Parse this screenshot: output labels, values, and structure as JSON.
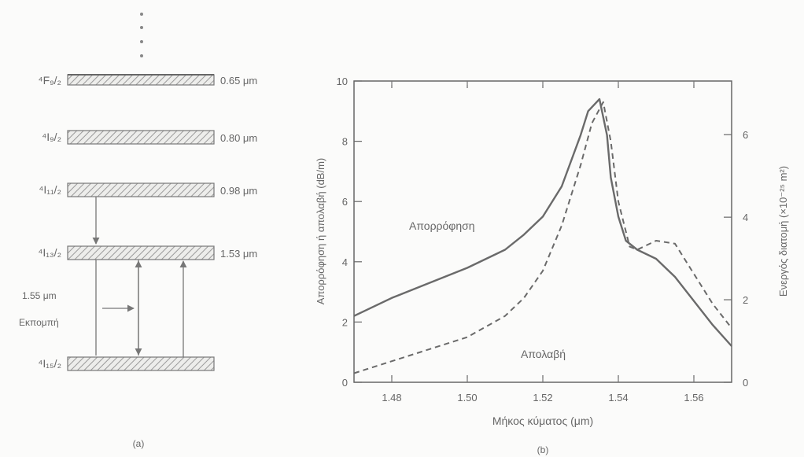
{
  "panel_a": {
    "levels": [
      {
        "label": "⁴F₉/₂",
        "wavelength": "0.65 μm"
      },
      {
        "label": "⁴I₉/₂",
        "wavelength": "0.80 μm"
      },
      {
        "label": "⁴I₁₁/₂",
        "wavelength": "0.98 μm"
      },
      {
        "label": "⁴I₁₃/₂",
        "wavelength": "1.53 μm"
      },
      {
        "label": "⁴I₁₅/₂",
        "wavelength": ""
      }
    ],
    "emission_label_line1": "1.55 μm",
    "emission_label_line2": "Εκπομπή",
    "caption": "(a)"
  },
  "panel_b": {
    "caption": "(b)"
  },
  "chart_data": {
    "type": "line",
    "xlabel": "Μήκος κύματος (μm)",
    "ylabel_left": "Απορρόφηση ή απολαβή (dB/m)",
    "ylabel_right": "Ενεργός διατομή (×10⁻²⁵ m²)",
    "xlim": [
      1.47,
      1.57
    ],
    "ylim_left": [
      0,
      10
    ],
    "ylim_right": [
      0,
      7.3
    ],
    "x_ticks": [
      "1.48",
      "1.50",
      "1.52",
      "1.54",
      "1.56"
    ],
    "y_ticks_left": [
      "0",
      "2",
      "4",
      "6",
      "8",
      "10"
    ],
    "y_ticks_right": [
      "0",
      "2",
      "4",
      "6"
    ],
    "series": [
      {
        "name": "Απορρόφηση",
        "style": "solid",
        "x": [
          1.47,
          1.48,
          1.49,
          1.5,
          1.51,
          1.515,
          1.52,
          1.525,
          1.53,
          1.532,
          1.535,
          1.537,
          1.538,
          1.54,
          1.542,
          1.545,
          1.55,
          1.555,
          1.56,
          1.565,
          1.57
        ],
        "y": [
          2.2,
          2.8,
          3.3,
          3.8,
          4.4,
          4.9,
          5.5,
          6.5,
          8.2,
          9.0,
          9.4,
          8.2,
          6.8,
          5.5,
          4.7,
          4.4,
          4.1,
          3.5,
          2.7,
          1.9,
          1.2
        ]
      },
      {
        "name": "Απολαβή",
        "style": "dashed",
        "x": [
          1.47,
          1.48,
          1.49,
          1.5,
          1.51,
          1.515,
          1.52,
          1.525,
          1.53,
          1.533,
          1.536,
          1.538,
          1.54,
          1.543,
          1.545,
          1.55,
          1.555,
          1.56,
          1.565,
          1.57
        ],
        "y": [
          0.3,
          0.7,
          1.1,
          1.5,
          2.2,
          2.8,
          3.7,
          5.2,
          7.2,
          8.6,
          9.3,
          8.0,
          6.0,
          4.5,
          4.4,
          4.7,
          4.6,
          3.6,
          2.6,
          1.8
        ]
      }
    ],
    "annotations": [
      {
        "text": "Απορρόφηση",
        "series": "Απορρόφηση"
      },
      {
        "text": "Απολαβή",
        "series": "Απολαβή"
      }
    ]
  }
}
